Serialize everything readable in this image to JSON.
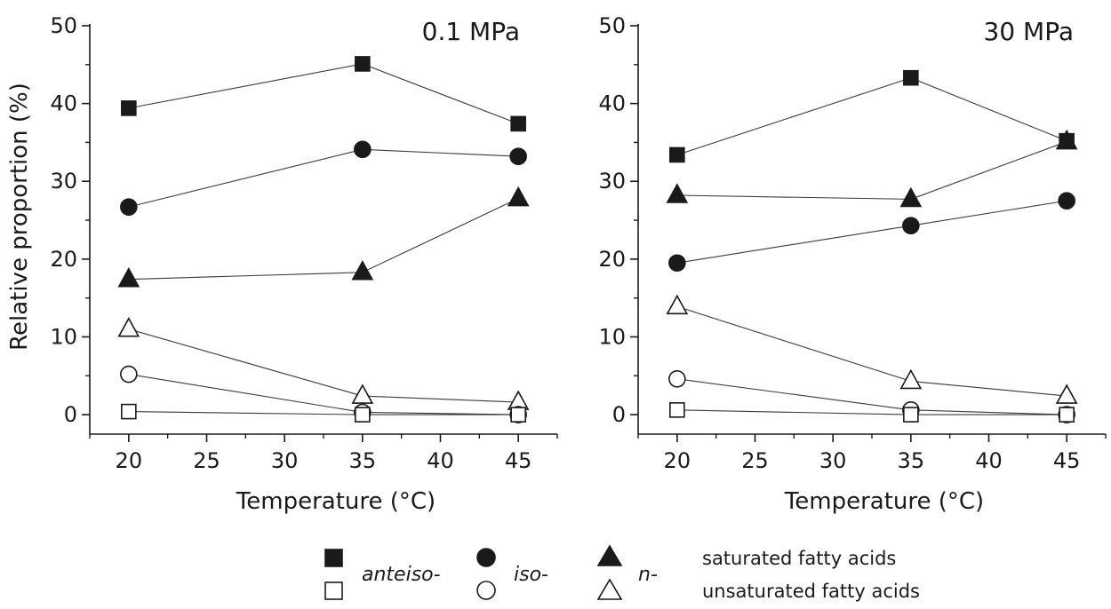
{
  "legend": {
    "anteiso_label": "anteiso-",
    "iso_label": "iso-",
    "n_label": "n-",
    "saturated_label": "saturated fatty acids",
    "unsaturated_label": "unsaturated fatty acids"
  },
  "chart_data": [
    {
      "type": "line",
      "title": "0.1 MPa",
      "xlabel": "Temperature (°C)",
      "ylabel": "Relative proportion (%)",
      "xlim": [
        17.5,
        47.5
      ],
      "ylim": [
        -2.5,
        50
      ],
      "xticks": [
        20,
        25,
        30,
        35,
        40,
        45
      ],
      "yticks": [
        0,
        10,
        20,
        30,
        40,
        50
      ],
      "x": [
        20,
        35,
        45
      ],
      "series": [
        {
          "name": "anteiso- saturated",
          "marker": "square",
          "filled": true,
          "values": [
            39.4,
            45.1,
            37.4
          ]
        },
        {
          "name": "iso- saturated",
          "marker": "circle",
          "filled": true,
          "values": [
            26.7,
            34.1,
            33.2
          ]
        },
        {
          "name": "n- saturated",
          "marker": "triangle",
          "filled": true,
          "values": [
            17.4,
            18.3,
            27.8
          ]
        },
        {
          "name": "n- unsaturated",
          "marker": "triangle",
          "filled": false,
          "values": [
            11.0,
            2.4,
            1.6
          ]
        },
        {
          "name": "iso- unsaturated",
          "marker": "circle",
          "filled": false,
          "values": [
            5.2,
            0.3,
            0.0
          ]
        },
        {
          "name": "anteiso- unsaturated",
          "marker": "square",
          "filled": false,
          "values": [
            0.4,
            0.0,
            0.0
          ]
        }
      ]
    },
    {
      "type": "line",
      "title": "30 MPa",
      "xlabel": "Temperature (°C)",
      "ylabel": "",
      "xlim": [
        17.5,
        47.5
      ],
      "ylim": [
        -2.5,
        50
      ],
      "xticks": [
        20,
        25,
        30,
        35,
        40,
        45
      ],
      "yticks": [
        0,
        10,
        20,
        30,
        40,
        50
      ],
      "x": [
        20,
        35,
        45
      ],
      "series": [
        {
          "name": "anteiso- saturated",
          "marker": "square",
          "filled": true,
          "values": [
            33.4,
            43.3,
            35.2
          ]
        },
        {
          "name": "iso- saturated",
          "marker": "circle",
          "filled": true,
          "values": [
            19.5,
            24.3,
            27.5
          ]
        },
        {
          "name": "n- saturated",
          "marker": "triangle",
          "filled": true,
          "values": [
            28.2,
            27.7,
            35.1
          ]
        },
        {
          "name": "n- unsaturated",
          "marker": "triangle",
          "filled": false,
          "values": [
            13.9,
            4.3,
            2.4
          ]
        },
        {
          "name": "iso- unsaturated",
          "marker": "circle",
          "filled": false,
          "values": [
            4.6,
            0.6,
            0.0
          ]
        },
        {
          "name": "anteiso- unsaturated",
          "marker": "square",
          "filled": false,
          "values": [
            0.6,
            0.0,
            0.0
          ]
        }
      ]
    }
  ]
}
